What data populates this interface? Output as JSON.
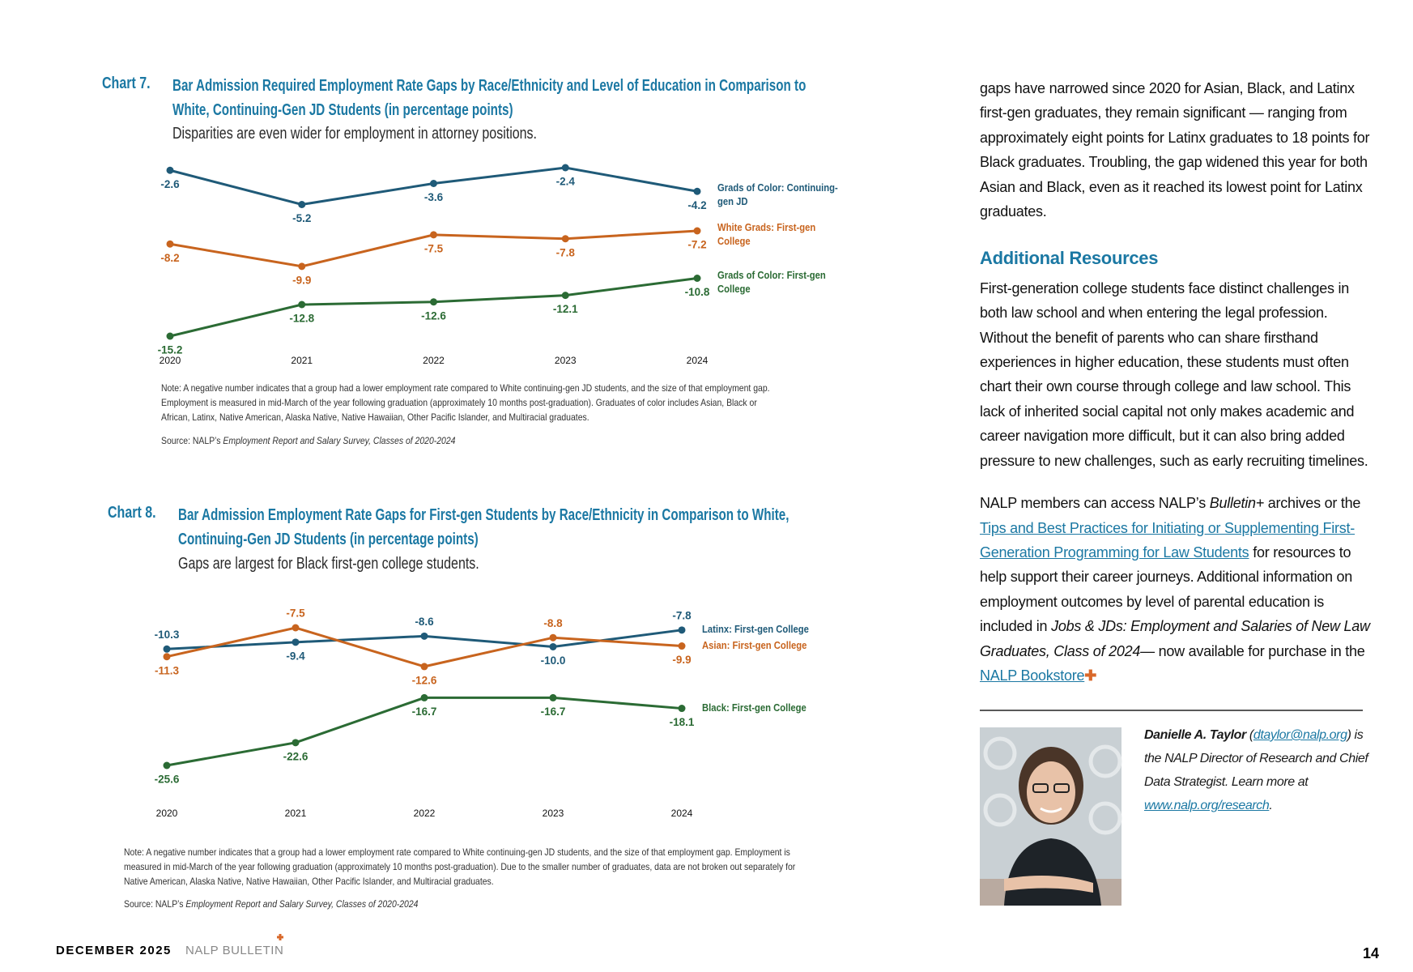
{
  "chart_data": [
    {
      "type": "line",
      "label": "Chart 7.",
      "title": "Bar Admission Required Employment Rate Gaps by Race/Ethnicity and Level of Education in Comparison to White, Continuing-Gen JD Students (in percentage points)",
      "subtitle": "Disparities are even wider for employment in attorney positions.",
      "categories": [
        "2020",
        "2021",
        "2022",
        "2023",
        "2024"
      ],
      "series": [
        {
          "name": "Grads of Color: Continuing-gen JD",
          "color": "#1f5a78",
          "values": [
            -2.6,
            -5.2,
            -3.6,
            -2.4,
            -4.2
          ]
        },
        {
          "name": "White Grads: First-gen College",
          "color": "#c8641e",
          "values": [
            -8.2,
            -9.9,
            -7.5,
            -7.8,
            -7.2
          ]
        },
        {
          "name": "Grads of Color: First-gen College",
          "color": "#2b6b34",
          "values": [
            -15.2,
            -12.8,
            -12.6,
            -12.1,
            -10.8
          ]
        }
      ],
      "note": "Note: A negative number indicates that a group had a lower employment rate compared to White continuing-gen JD students, and the size of that employment gap. Employment is measured in mid-March of the year following graduation (approximately 10 months post-graduation). Graduates of color includes Asian, Black or African, Latinx, Native American, Alaska Native, Native Hawaiian, Other Pacific Islander, and Multiracial graduates.",
      "source": {
        "label": "Source: NALP’s",
        "publication": "Employment Report and Salary Survey, Classes of 2020-2024"
      }
    },
    {
      "type": "line",
      "label": "Chart 8.",
      "title": "Bar Admission Employment Rate Gaps for First-gen Students by Race/Ethnicity in Comparison to White, Continuing-Gen JD Students (in percentage points)",
      "subtitle": "Gaps are largest for Black first-gen college students.",
      "categories": [
        "2020",
        "2021",
        "2022",
        "2023",
        "2024"
      ],
      "series": [
        {
          "name": "Latinx: First-gen College",
          "color": "#1f5a78",
          "values": [
            -10.3,
            -9.4,
            -8.6,
            -10.0,
            -7.8
          ],
          "value_labels": [
            "-10.3",
            "-9.4",
            "-8.6",
            "-10.0",
            "-7.8"
          ]
        },
        {
          "name": "Asian: First-gen College",
          "color": "#c8641e",
          "values": [
            -11.3,
            -7.5,
            -12.6,
            -8.8,
            -9.9
          ]
        },
        {
          "name": "Black: First-gen College",
          "color": "#2b6b34",
          "values": [
            -25.6,
            -22.6,
            -16.7,
            -16.7,
            -18.1
          ]
        }
      ],
      "note": "Note: A negative number indicates that a group had a lower employment rate compared to White continuing-gen JD students, and the size of that employment gap. Employment is measured in mid-March of the year following graduation (approximately 10 months post-graduation). Due to the smaller number of graduates, data are not broken out separately for Native American, Alaska Native, Native Hawaiian, Other Pacific Islander, and Multiracial graduates.",
      "source": {
        "label": "Source: NALP’s",
        "publication": "Employment Report and Salary Survey, Classes of 2020-2024"
      }
    }
  ],
  "article": {
    "paragraph1": "gaps have narrowed since 2020 for Asian, Black, and Latinx first-gen graduates, they remain significant — ranging from approximately eight points for Latinx graduates to 18 points for Black graduates. Troubling, the gap widened this year for both Asian and Black, even as it reached its lowest point for Latinx graduates.",
    "heading": "Additional Resources",
    "paragraph2": "First-generation college students face distinct challenges in both law school and when entering the legal profession. Without the benefit of parents who can share firsthand experiences in higher education, these students must often chart their own course through college and law school. This lack of inherited social capital not only makes academic and career navigation more difficult, but it can also bring added pressure to new challenges, such as early recruiting timelines.",
    "paragraph3": {
      "text1": "NALP members can access NALP’s",
      "italic1": "Bulletin+",
      "text2": "archives or the",
      "link1": "Tips and Best Practices for Initiating or Supplementing First-Generation Programming for Law Students",
      "text3": "for resources to help support their career journeys. Additional information on employment outcomes by level of parental education is included in",
      "italic2": "Jobs & JDs: Employment and Salaries of New Law Graduates, Class of 2024",
      "text4": "— now available for purchase in the",
      "link2": "NALP Bookstore"
    },
    "bio": {
      "name": "Danielle A. Taylor",
      "email": "dtaylor@nalp.org",
      "text": "is the NALP Director of Research and Chief Data Strategist. Learn more at",
      "url": "www.nalp.org/research"
    }
  },
  "footer": {
    "date": "DECEMBER 2025",
    "publication": "NALP BULLETIN",
    "page": "14"
  }
}
